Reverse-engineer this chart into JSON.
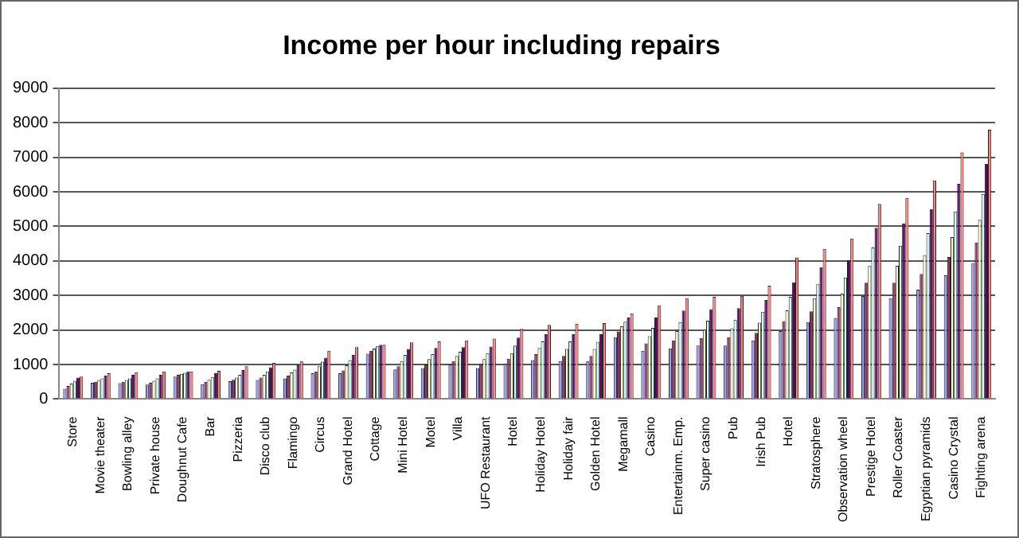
{
  "chart_data": {
    "type": "bar",
    "title": "Income per hour including repairs",
    "categories": [
      "Store",
      "Movie theater",
      "Bowling alley",
      "Private house",
      "Doughnut Cafe",
      "Bar",
      "Pizzeria",
      "Disco club",
      "Flamingo",
      "Circus",
      "Grand Hotel",
      "Cottage",
      "Mini Hotel",
      "Motel",
      "Villa",
      "UFO Restaurant",
      "Hotel",
      "Holiday Hotel",
      "Holiday fair",
      "Golden Hotel",
      "Megamall",
      "Casino",
      "Entertainm. Emp.",
      "Super casino",
      "Pub",
      "Irish Pub",
      "Hotel",
      "Stratosphere",
      "Observation wheel",
      "Prestige Hotel",
      "Roller Coaster",
      "Egyptian pyramids",
      "Casino Crystal",
      "Fighting arena"
    ],
    "series": [
      {
        "color": "#9999ff",
        "values": [
          300,
          470,
          460,
          420,
          650,
          430,
          520,
          550,
          600,
          750,
          750,
          1310,
          860,
          900,
          1000,
          900,
          1020,
          1130,
          1100,
          1100,
          1790,
          1400,
          1470,
          1550,
          1550,
          1700,
          1970,
          2230,
          2350,
          2980,
          2920,
          3170,
          3580,
          3940
        ]
      },
      {
        "color": "#993366",
        "values": [
          380,
          500,
          500,
          470,
          700,
          500,
          560,
          620,
          680,
          800,
          830,
          1400,
          950,
          1000,
          1100,
          1020,
          1170,
          1300,
          1250,
          1250,
          1960,
          1610,
          1700,
          1770,
          1790,
          1920,
          2260,
          2540,
          2660,
          3370,
          3370,
          3620,
          4110,
          4530
        ]
      },
      {
        "color": "#ffffcc",
        "values": [
          450,
          550,
          550,
          530,
          730,
          560,
          620,
          700,
          770,
          950,
          980,
          1460,
          1100,
          1160,
          1250,
          1160,
          1330,
          1480,
          1450,
          1450,
          2110,
          1820,
          1970,
          2010,
          2050,
          2210,
          2570,
          2920,
          3050,
          3850,
          3860,
          4170,
          4690,
          5190
        ]
      },
      {
        "color": "#ccffff",
        "values": [
          530,
          600,
          600,
          600,
          760,
          640,
          700,
          800,
          850,
          1080,
          1130,
          1540,
          1280,
          1300,
          1370,
          1330,
          1550,
          1670,
          1670,
          1660,
          2240,
          2060,
          2230,
          2270,
          2300,
          2530,
          2960,
          3320,
          3520,
          4390,
          4440,
          4800,
          5430,
          5940
        ]
      },
      {
        "color": "#660066",
        "values": [
          620,
          680,
          700,
          700,
          800,
          750,
          840,
          920,
          980,
          1200,
          1280,
          1570,
          1450,
          1480,
          1500,
          1520,
          1780,
          1880,
          1880,
          1880,
          2360,
          2360,
          2560,
          2600,
          2630,
          2870,
          3380,
          3820,
          4020,
          4960,
          5080,
          5500,
          6230,
          6810
        ]
      },
      {
        "color": "#ff8080",
        "values": [
          650,
          750,
          780,
          800,
          800,
          820,
          950,
          1050,
          1100,
          1400,
          1500,
          1570,
          1640,
          1670,
          1700,
          1750,
          2030,
          2150,
          2180,
          2200,
          2480,
          2710,
          2920,
          2960,
          2990,
          3280,
          4100,
          4350,
          4650,
          5650,
          5820,
          6330,
          7140,
          7800
        ]
      }
    ],
    "ylim": [
      0,
      9000
    ],
    "yticks": [
      0,
      1000,
      2000,
      3000,
      4000,
      5000,
      6000,
      7000,
      8000,
      9000
    ],
    "grid": "y"
  }
}
